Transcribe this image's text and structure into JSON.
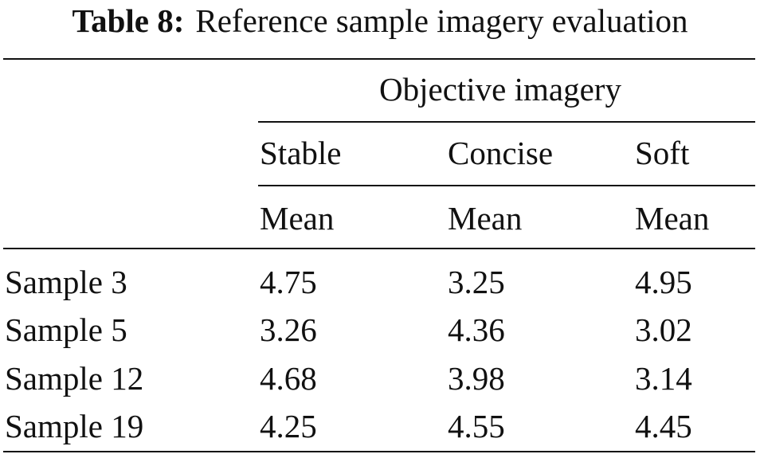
{
  "caption": {
    "label": "Table 8:",
    "title": "Reference sample imagery evaluation"
  },
  "table": {
    "group_header": "Objective imagery",
    "columns": [
      "Stable",
      "Concise",
      "Soft"
    ],
    "subheaders": [
      "Mean",
      "Mean",
      "Mean"
    ],
    "rows": [
      {
        "label": "Sample 3",
        "values": [
          "4.75",
          "3.25",
          "4.95"
        ]
      },
      {
        "label": "Sample 5",
        "values": [
          "3.26",
          "4.36",
          "3.02"
        ]
      },
      {
        "label": "Sample 12",
        "values": [
          "4.68",
          "3.98",
          "3.14"
        ]
      },
      {
        "label": "Sample 19",
        "values": [
          "4.25",
          "4.55",
          "4.45"
        ]
      }
    ]
  }
}
